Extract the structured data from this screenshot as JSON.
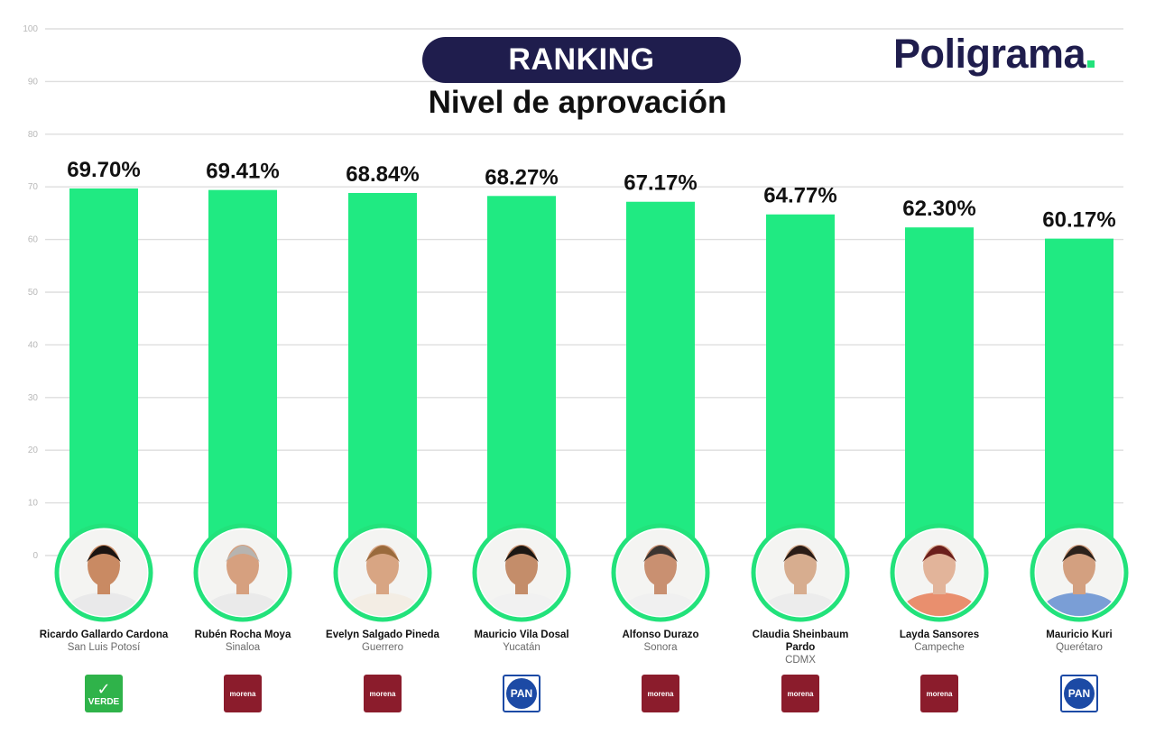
{
  "header": {
    "title": "RANKING",
    "subtitle": "Nivel de aprovación",
    "brand": "Poligrama"
  },
  "colors": {
    "bar": "#20ea82",
    "ring": "#22e27b",
    "title_pill": "#1f1d4d",
    "brand": "#1f1d4d",
    "grid": "#dedede",
    "tick": "#b8b8b8",
    "morena": "#8b1c2c",
    "pan": "#1c4aa5",
    "verde": "#2fb34a"
  },
  "chart_data": {
    "type": "bar",
    "title": "Nivel de aprovación",
    "xlabel": "",
    "ylabel": "",
    "ylim": [
      0,
      100
    ],
    "yticks": [
      0,
      10,
      20,
      30,
      40,
      50,
      60,
      70,
      80,
      90,
      100
    ],
    "grid": true,
    "categories": [
      "Ricardo Gallardo Cardona",
      "Rubén Rocha Moya",
      "Evelyn Salgado Pineda",
      "Mauricio Vila Dosal",
      "Alfonso Durazo",
      "Claudia Sheinbaum Pardo",
      "Layda Sansores",
      "Mauricio Kuri"
    ],
    "values": [
      69.7,
      69.41,
      68.84,
      68.27,
      67.17,
      64.77,
      62.3,
      60.17
    ],
    "data_labels": [
      "69.70%",
      "69.41%",
      "68.84%",
      "68.27%",
      "67.17%",
      "64.77%",
      "62.30%",
      "60.17%"
    ]
  },
  "candidates": [
    {
      "name": "Ricardo Gallardo Cardona",
      "state": "San Luis Potosí",
      "party": "verde",
      "party_label": "VERDE"
    },
    {
      "name": "Rubén Rocha Moya",
      "state": "Sinaloa",
      "party": "morena",
      "party_label": "morena"
    },
    {
      "name": "Evelyn Salgado Pineda",
      "state": "Guerrero",
      "party": "morena",
      "party_label": "morena"
    },
    {
      "name": "Mauricio Vila Dosal",
      "state": "Yucatán",
      "party": "pan",
      "party_label": "PAN"
    },
    {
      "name": "Alfonso Durazo",
      "state": "Sonora",
      "party": "morena",
      "party_label": "morena"
    },
    {
      "name": "Claudia Sheinbaum Pardo",
      "state": "CDMX",
      "party": "morena",
      "party_label": "morena"
    },
    {
      "name": "Layda Sansores",
      "state": "Campeche",
      "party": "morena",
      "party_label": "morena"
    },
    {
      "name": "Mauricio Kuri",
      "state": "Querétaro",
      "party": "pan",
      "party_label": "PAN"
    }
  ]
}
